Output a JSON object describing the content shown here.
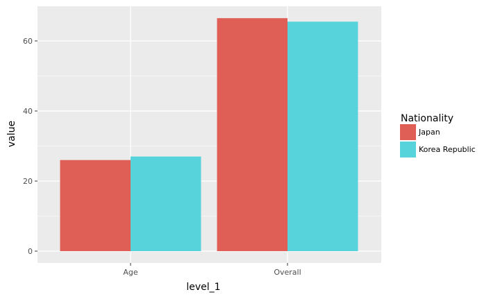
{
  "chart_data": {
    "type": "bar",
    "categories": [
      "Age",
      "Overall"
    ],
    "series": [
      {
        "name": "Japan",
        "values": [
          26,
          66.5
        ],
        "color": "#df5f57"
      },
      {
        "name": "Korea Republic",
        "values": [
          27,
          65.5
        ],
        "color": "#57d3dc"
      }
    ],
    "xlabel": "level_1",
    "ylabel": "value",
    "ylim": [
      0,
      70
    ],
    "yticks": [
      0,
      20,
      40,
      60
    ],
    "grid": true,
    "legend_title": "Nationality",
    "legend_position": "right",
    "panel_background": "#ebebeb",
    "grid_color": "#ffffff"
  }
}
